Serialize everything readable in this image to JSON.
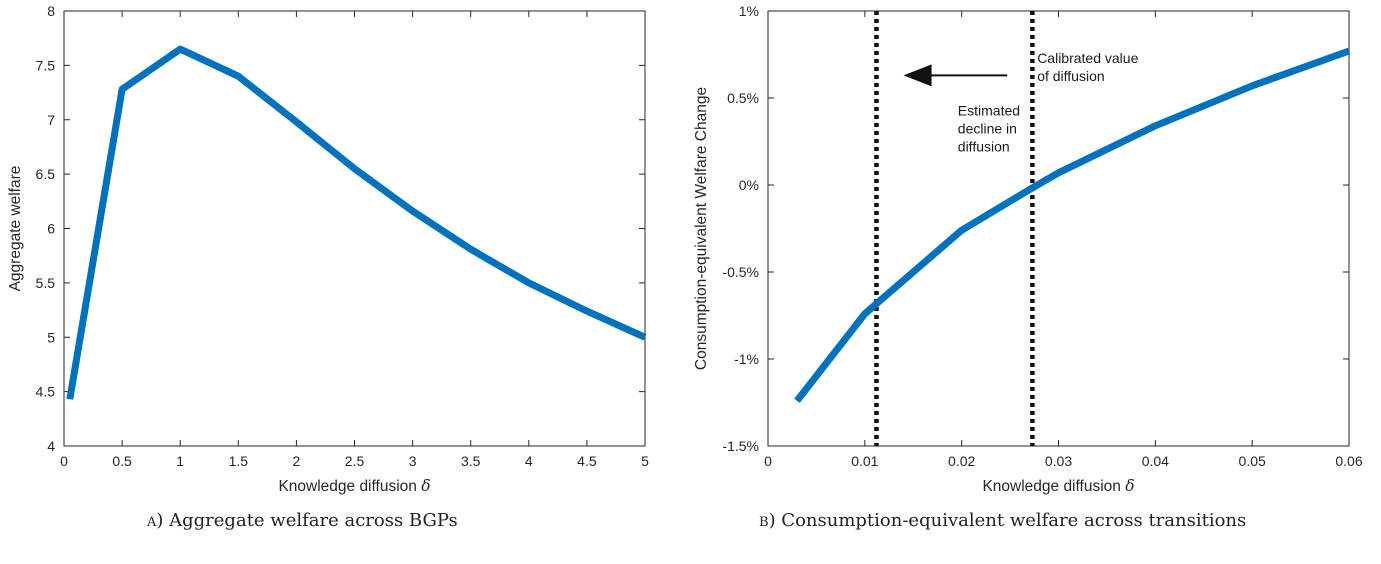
{
  "chart_data": [
    {
      "type": "line",
      "xlabel": "Knowledge diffusion",
      "xlabel_symbol": "δ",
      "ylabel": "Aggregate welfare",
      "xlim": [
        0,
        5
      ],
      "ylim": [
        4,
        8
      ],
      "xticks": [
        0,
        0.5,
        1,
        1.5,
        2,
        2.5,
        3,
        3.5,
        4,
        4.5,
        5
      ],
      "xtick_labels": [
        "0",
        "0.5",
        "1",
        "1.5",
        "2",
        "2.5",
        "3",
        "3.5",
        "4",
        "4.5",
        "5"
      ],
      "yticks": [
        4,
        4.5,
        5,
        5.5,
        6,
        6.5,
        7,
        7.5,
        8
      ],
      "ytick_labels": [
        "4",
        "4.5",
        "5",
        "5.5",
        "6",
        "6.5",
        "7",
        "7.5",
        "8"
      ],
      "grid": false,
      "color": "#0072bd",
      "series": [
        {
          "x": [
            0.05,
            0.5,
            1,
            1.5,
            2,
            2.5,
            3,
            3.5,
            4,
            4.5,
            5
          ],
          "values": [
            4.43,
            7.28,
            7.65,
            7.4,
            6.98,
            6.55,
            6.16,
            5.81,
            5.5,
            5.24,
            5.0
          ]
        }
      ],
      "caption_letter": "a",
      "caption": ") Aggregate welfare across BGPs"
    },
    {
      "type": "line",
      "xlabel": "Knowledge diffusion",
      "xlabel_symbol": "δ",
      "ylabel": "Consumption-equivalent Welfare Change",
      "xlim": [
        0,
        0.06
      ],
      "ylim": [
        -1.5,
        1
      ],
      "xticks": [
        0,
        0.01,
        0.02,
        0.03,
        0.04,
        0.05,
        0.06
      ],
      "xtick_labels": [
        "0",
        "0.01",
        "0.02",
        "0.03",
        "0.04",
        "0.05",
        "0.06"
      ],
      "yticks": [
        -1.5,
        -1,
        -0.5,
        0,
        0.5,
        1
      ],
      "ytick_labels": [
        "-1.5%",
        "-1%",
        "-0.5%",
        "0%",
        "0.5%",
        "1%"
      ],
      "grid": false,
      "color": "#0072bd",
      "series": [
        {
          "x": [
            0.003,
            0.01,
            0.02,
            0.0275,
            0.03,
            0.04,
            0.05,
            0.06
          ],
          "values": [
            -1.24,
            -0.74,
            -0.26,
            -0.01,
            0.07,
            0.34,
            0.57,
            0.77
          ]
        }
      ],
      "vlines": [
        0.0112,
        0.0273
      ],
      "annotations": [
        {
          "lines": [
            "Calibrated value",
            "of diffusion"
          ],
          "x": 0.0278,
          "y": 0.7
        },
        {
          "lines": [
            "Estimated",
            "decline in",
            "diffusion"
          ],
          "x": 0.0196,
          "y": 0.4
        }
      ],
      "arrow": {
        "from": [
          0.0247,
          0.63
        ],
        "to": [
          0.014,
          0.63
        ]
      },
      "caption_letter": "b",
      "caption": ") Consumption-equivalent welfare across transitions"
    }
  ]
}
